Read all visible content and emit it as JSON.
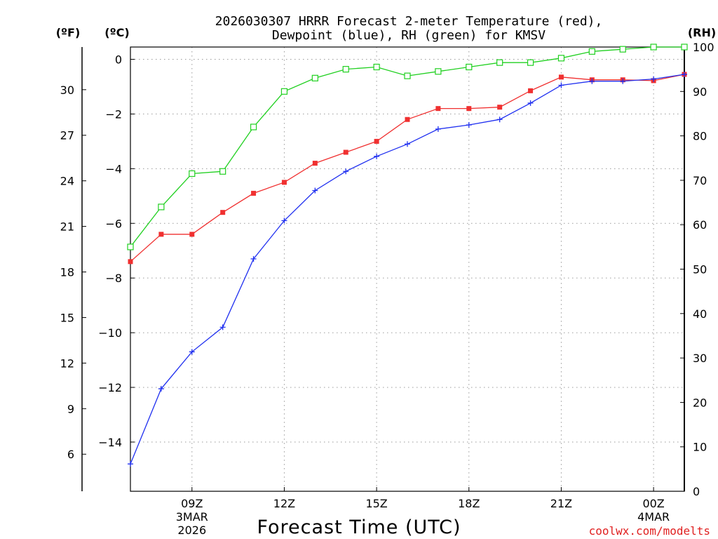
{
  "chart_data": {
    "type": "line",
    "title_line1": "2026030307 HRRR Forecast 2-meter Temperature (red),",
    "title_line2": "Dewpoint (blue), RH (green) for KMSV",
    "xlabel": "Forecast Time (UTC)",
    "credit": "coolwx.com/modelts",
    "units": {
      "fahrenheit": "(ºF)",
      "celsius": "(ºC)",
      "rh": "(RH)"
    },
    "x_ticks": [
      {
        "hour": 9,
        "label": "09Z",
        "sub1": "3MAR",
        "sub2": "2026"
      },
      {
        "hour": 12,
        "label": "12Z",
        "sub1": "",
        "sub2": ""
      },
      {
        "hour": 15,
        "label": "15Z",
        "sub1": "",
        "sub2": ""
      },
      {
        "hour": 18,
        "label": "18Z",
        "sub1": "",
        "sub2": ""
      },
      {
        "hour": 21,
        "label": "21Z",
        "sub1": "",
        "sub2": ""
      },
      {
        "hour": 24,
        "label": "00Z",
        "sub1": "4MAR",
        "sub2": ""
      }
    ],
    "xlim": [
      7,
      25
    ],
    "celsius_axis": {
      "ylim": [
        -15.8,
        0.45
      ],
      "ticks": [
        "0",
        "−2",
        "−4",
        "−6",
        "−8",
        "−10",
        "−12",
        "−14"
      ],
      "tick_values": [
        0,
        -2,
        -4,
        -6,
        -8,
        -10,
        -12,
        -14
      ]
    },
    "fahrenheit_axis": {
      "ticks": [
        "30",
        "27",
        "24",
        "21",
        "18",
        "15",
        "12",
        "9",
        "6"
      ],
      "tick_values": [
        30,
        27,
        24,
        21,
        18,
        15,
        12,
        9,
        6
      ]
    },
    "rh_axis": {
      "ylim": [
        0,
        100
      ],
      "ticks": [
        "0",
        "10",
        "20",
        "30",
        "40",
        "50",
        "60",
        "70",
        "80",
        "90",
        "100"
      ],
      "tick_values": [
        0,
        10,
        20,
        30,
        40,
        50,
        60,
        70,
        80,
        90,
        100
      ]
    },
    "x": [
      7,
      8,
      9,
      10,
      11,
      12,
      13,
      14,
      15,
      16,
      17,
      18,
      19,
      20,
      21,
      22,
      23,
      24,
      25
    ],
    "series": [
      {
        "name": "Temperature",
        "axis": "celsius",
        "color": "#f03030",
        "marker": "filled-square",
        "values": [
          -7.4,
          -6.4,
          -6.4,
          -5.6,
          -4.9,
          -4.5,
          -3.8,
          -3.4,
          -3.0,
          -2.2,
          -1.8,
          -1.8,
          -1.75,
          -1.15,
          -0.65,
          -0.75,
          -0.75,
          -0.78,
          -0.55
        ]
      },
      {
        "name": "Dewpoint",
        "axis": "celsius",
        "color": "#2030f0",
        "marker": "plus",
        "values": [
          -14.8,
          -12.05,
          -10.7,
          -9.8,
          -7.3,
          -5.9,
          -4.8,
          -4.1,
          -3.55,
          -3.1,
          -2.55,
          -2.4,
          -2.2,
          -1.6,
          -0.95,
          -0.8,
          -0.8,
          -0.72,
          -0.55
        ]
      },
      {
        "name": "RH",
        "axis": "rh",
        "color": "#20d020",
        "marker": "open-square",
        "values": [
          55,
          64,
          71.5,
          72,
          82,
          90,
          93,
          95,
          95.5,
          93.5,
          94.5,
          95.5,
          96.5,
          96.5,
          97.5,
          99,
          99.5,
          100,
          100
        ]
      }
    ]
  }
}
